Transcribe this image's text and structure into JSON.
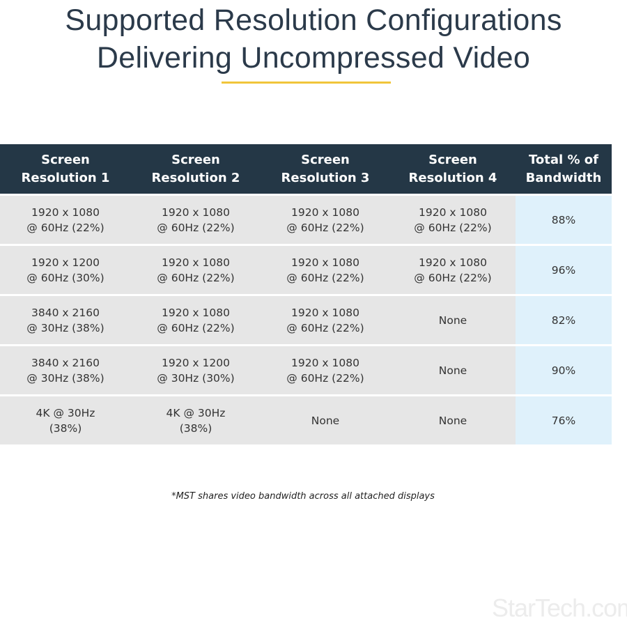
{
  "title": {
    "line1": "Supported Resolution Configurations",
    "line2": "Delivering Uncompressed Video"
  },
  "colors": {
    "header": "#243746",
    "accent": "#f0c53a",
    "row": "#e6e6e6",
    "total": "#dff1fb"
  },
  "table": {
    "headers": [
      [
        "Screen",
        "Resolution 1"
      ],
      [
        "Screen",
        "Resolution 2"
      ],
      [
        "Screen",
        "Resolution 3"
      ],
      [
        "Screen",
        "Resolution 4"
      ],
      [
        "Total % of",
        "Bandwidth"
      ]
    ],
    "rows": [
      [
        [
          "1920 x 1080",
          "@ 60Hz (22%)"
        ],
        [
          "1920 x 1080",
          "@ 60Hz (22%)"
        ],
        [
          "1920 x 1080",
          "@ 60Hz (22%)"
        ],
        [
          "1920 x 1080",
          "@ 60Hz (22%)"
        ],
        [
          "88%",
          ""
        ]
      ],
      [
        [
          "1920 x 1200",
          "@ 60Hz (30%)"
        ],
        [
          "1920 x 1080",
          "@ 60Hz (22%)"
        ],
        [
          "1920 x 1080",
          "@ 60Hz (22%)"
        ],
        [
          "1920 x 1080",
          "@ 60Hz (22%)"
        ],
        [
          "96%",
          ""
        ]
      ],
      [
        [
          "3840 x 2160",
          "@ 30Hz (38%)"
        ],
        [
          "1920 x 1080",
          "@ 60Hz (22%)"
        ],
        [
          "1920 x 1080",
          "@ 60Hz (22%)"
        ],
        [
          "None",
          ""
        ],
        [
          "82%",
          ""
        ]
      ],
      [
        [
          "3840 x 2160",
          "@ 30Hz (38%)"
        ],
        [
          "1920 x 1200",
          "@ 30Hz (30%)"
        ],
        [
          "1920 x 1080",
          "@ 60Hz (22%)"
        ],
        [
          "None",
          ""
        ],
        [
          "90%",
          ""
        ]
      ],
      [
        [
          "4K @ 30Hz",
          "(38%)"
        ],
        [
          "4K @ 30Hz",
          "(38%)"
        ],
        [
          "None",
          ""
        ],
        [
          "None",
          ""
        ],
        [
          "76%",
          ""
        ]
      ]
    ]
  },
  "footnote": "*MST shares video bandwidth across all attached displays",
  "logo": "StarTech.com"
}
